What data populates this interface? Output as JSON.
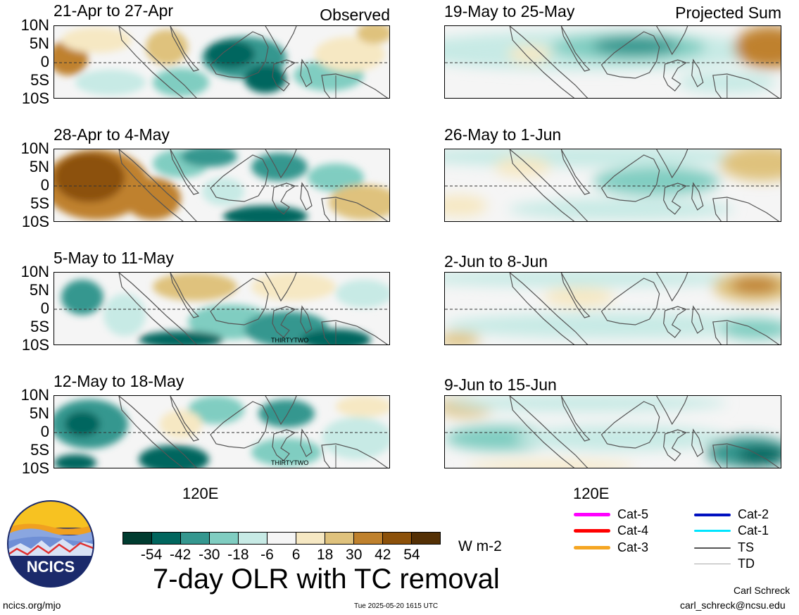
{
  "left_column_tag": "Observed",
  "right_column_tag": "Projected Sum",
  "y_labels": [
    "10N",
    "5N",
    "0",
    "5S",
    "10S"
  ],
  "x_label": "120E",
  "left_panels": [
    {
      "title": "21-Apr to 27-Apr",
      "tc": ""
    },
    {
      "title": "28-Apr to 4-May",
      "tc": ""
    },
    {
      "title": "5-May to 11-May",
      "tc": "THIRTYTWO"
    },
    {
      "title": "12-May to 18-May",
      "tc": "THIRTYTWO"
    }
  ],
  "right_panels": [
    {
      "title": "19-May to 25-May"
    },
    {
      "title": "26-May to 1-Jun"
    },
    {
      "title": "2-Jun to 8-Jun"
    },
    {
      "title": "9-Jun to 15-Jun"
    }
  ],
  "colorbar": {
    "colors": [
      "#003c30",
      "#01665e",
      "#35978f",
      "#80cdc1",
      "#c7eae5",
      "#f5f5f5",
      "#f6e8c3",
      "#dfc27d",
      "#bf812d",
      "#8c510a",
      "#543005"
    ],
    "ticks": [
      "-54",
      "-42",
      "-30",
      "-18",
      "-6",
      "6",
      "18",
      "30",
      "42",
      "54"
    ],
    "units": "W m-2"
  },
  "main_title": "7-day OLR with TC removal",
  "logo_text": "NCICS",
  "footer": {
    "left": "ncics.org/mjo",
    "center": "Tue 2025-05-20 1615 UTC",
    "author": "Carl Schreck",
    "email": "carl_schreck@ncsu.edu"
  },
  "legend": [
    {
      "label": "Cat-5",
      "color": "#ff00ff",
      "width": 5
    },
    {
      "label": "Cat-4",
      "color": "#ff0000",
      "width": 5
    },
    {
      "label": "Cat-3",
      "color": "#f5a623",
      "width": 5
    },
    {
      "label": "Cat-2",
      "color": "#0010c0",
      "width": 4
    },
    {
      "label": "Cat-1",
      "color": "#00e5ff",
      "width": 3
    },
    {
      "label": "TS",
      "color": "#555555",
      "width": 2
    },
    {
      "label": "TD",
      "color": "#aaaaaa",
      "width": 1
    }
  ]
}
